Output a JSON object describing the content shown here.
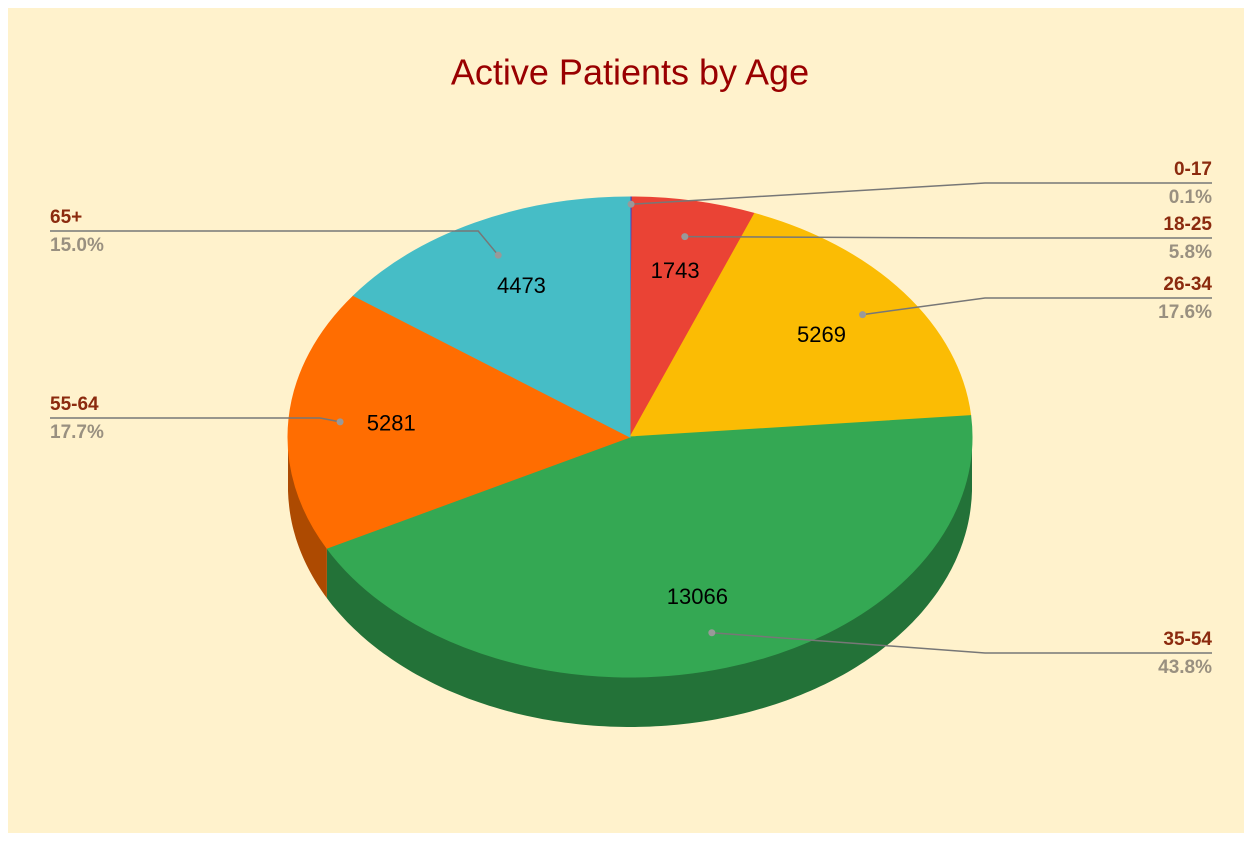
{
  "chart_data": {
    "type": "pie",
    "title": "Active Patients by Age",
    "categories": [
      "0-17",
      "18-25",
      "26-34",
      "35-54",
      "55-64",
      "65+"
    ],
    "values": [
      30,
      1743,
      5269,
      13066,
      5281,
      4473
    ],
    "value_labels": [
      "0.1%",
      "5.8%",
      "17.6%",
      "43.8%",
      "17.7%",
      "15.0%"
    ],
    "colors": [
      "#3c3fc4",
      "#ea4335",
      "#fbbc04",
      "#34a853",
      "#ff6d01",
      "#46bdc6"
    ],
    "three_d": true
  }
}
